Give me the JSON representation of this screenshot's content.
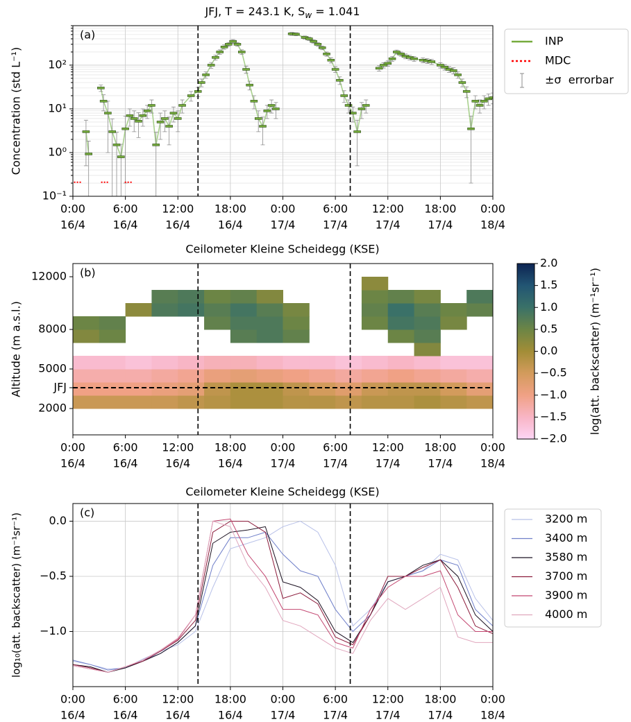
{
  "chart_data": [
    {
      "type": "errorbar",
      "label": "(a)",
      "title": [
        "JFJ, T = 243.1 K, S",
        "w",
        " = 1.041"
      ],
      "ylabel": "Concentration (std L⁻¹)",
      "xlim": [
        0,
        48
      ],
      "xticks": [
        {
          "value": 0,
          "label": [
            "0:00",
            "16/4"
          ]
        },
        {
          "value": 6,
          "label": [
            "6:00",
            "16/4"
          ]
        },
        {
          "value": 12,
          "label": [
            "12:00",
            "16/4"
          ]
        },
        {
          "value": 18,
          "label": [
            "18:00",
            "16/4"
          ]
        },
        {
          "value": 24,
          "label": [
            "0:00",
            "17/4"
          ]
        },
        {
          "value": 30,
          "label": [
            "6:00",
            "17/4"
          ]
        },
        {
          "value": 36,
          "label": [
            "12:00",
            "17/4"
          ]
        },
        {
          "value": 42,
          "label": [
            "18:00",
            "17/4"
          ]
        },
        {
          "value": 48,
          "label": [
            "0:00",
            "18/4"
          ]
        }
      ],
      "ylim": [
        0.1,
        800
      ],
      "yscale": "log",
      "yticks": [
        {
          "value": 0.1,
          "label": "10⁻¹"
        },
        {
          "value": 1,
          "label": "10⁰"
        },
        {
          "value": 10,
          "label": "10¹"
        },
        {
          "value": 100,
          "label": "10²"
        }
      ],
      "minor_yticks": [
        0.2,
        0.3,
        0.4,
        0.5,
        0.6,
        0.7,
        0.8,
        0.9,
        2,
        3,
        4,
        5,
        6,
        7,
        8,
        9,
        20,
        30,
        40,
        50,
        60,
        70,
        80,
        90,
        200,
        300,
        400,
        500,
        600,
        700,
        800
      ],
      "grid": true,
      "vlines": [
        14.3,
        31.7
      ],
      "legend": "outside right",
      "errorbar_label": "±σ  errorbar",
      "errorbar_color": "#8c8c8c",
      "line_color": "#a9d18e",
      "series": [
        {
          "name": "INP",
          "color": "#76ab3c",
          "x": [
            1.5,
            1.8,
            2.5,
            3.2,
            3.5,
            4.0,
            4.5,
            5.0,
            5.5,
            6.0,
            6.5,
            7.0,
            7.5,
            8.0,
            8.5,
            9.0,
            9.5,
            10.0,
            10.5,
            11.0,
            11.5,
            12.0,
            12.5,
            13.5,
            14.3,
            14.7,
            15.2,
            15.8,
            16.3,
            16.8,
            17.3,
            17.8,
            18.3,
            18.8,
            19.3,
            19.8,
            20.2,
            20.7,
            21.2,
            21.7,
            22.2,
            22.7,
            23.2,
            24.1,
            25.0,
            25.5,
            26.5,
            27.0,
            27.5,
            28.0,
            28.5,
            29.0,
            29.5,
            30.0,
            30.5,
            31.0,
            31.5,
            32.0,
            32.5,
            33.0,
            33.5,
            34.2,
            35.0,
            35.5,
            36.0,
            36.5,
            37.0,
            37.5,
            38.0,
            38.5,
            39.0,
            40.0,
            40.5,
            41.0,
            42.0,
            42.5,
            43.0,
            43.5,
            44.0,
            44.5,
            45.0,
            45.5,
            46.0,
            46.5,
            47.0,
            47.5,
            48.0
          ],
          "values": [
            3.0,
            0.93,
            null,
            30,
            15,
            8,
            3,
            1.5,
            0.8,
            3.5,
            7,
            6,
            5.2,
            7,
            9,
            12,
            1.5,
            5,
            6,
            4,
            8,
            6,
            12,
            20,
            25,
            40,
            60,
            100,
            150,
            200,
            260,
            300,
            350,
            300,
            200,
            80,
            35,
            15,
            6,
            4,
            9,
            12,
            10,
            null,
            520,
            510,
            430,
            400,
            350,
            300,
            250,
            180,
            130,
            80,
            45,
            20,
            12,
            8,
            3,
            10,
            12,
            null,
            85,
            100,
            110,
            140,
            200,
            180,
            160,
            150,
            140,
            130,
            125,
            120,
            100,
            90,
            80,
            75,
            60,
            40,
            25,
            3.5,
            15,
            12,
            15,
            17,
            18
          ],
          "errors": [
            2.5,
            0.9,
            null,
            5,
            6,
            7,
            2.9,
            1.4,
            0.75,
            3.3,
            3,
            3,
            3,
            3,
            3,
            4,
            1.4,
            3,
            3,
            2.5,
            3,
            3,
            4,
            5,
            6,
            8,
            10,
            15,
            20,
            25,
            30,
            30,
            35,
            30,
            25,
            15,
            8,
            5,
            3,
            2.5,
            3,
            4,
            4,
            null,
            40,
            40,
            35,
            35,
            30,
            30,
            25,
            20,
            18,
            12,
            9,
            6,
            4,
            3,
            2.5,
            4,
            4,
            null,
            12,
            14,
            15,
            18,
            22,
            20,
            20,
            18,
            18,
            17,
            16,
            16,
            14,
            13,
            12,
            12,
            10,
            8,
            7,
            3.3,
            5,
            4,
            5,
            5,
            5
          ]
        },
        {
          "name": "MDC",
          "color": "#ff0000",
          "x": [
            0.6,
            3.7,
            6.4
          ],
          "values": [
            0.21,
            0.21,
            0.21
          ]
        }
      ]
    },
    {
      "type": "heatmap",
      "label": "(b)",
      "title": "Ceilometer Kleine Scheidegg (KSE)",
      "ylabel": "Altitude (m a.s.l.)",
      "colorbar_label": "log(att. backscatter) (m⁻¹sr⁻¹)",
      "xlim": [
        0,
        48
      ],
      "xticks": [
        {
          "value": 0,
          "label": [
            "0:00",
            "16/4"
          ]
        },
        {
          "value": 6,
          "label": [
            "6:00",
            "16/4"
          ]
        },
        {
          "value": 12,
          "label": [
            "12:00",
            "16/4"
          ]
        },
        {
          "value": 18,
          "label": [
            "18:00",
            "16/4"
          ]
        },
        {
          "value": 24,
          "label": [
            "0:00",
            "17/4"
          ]
        },
        {
          "value": 30,
          "label": [
            "6:00",
            "17/4"
          ]
        },
        {
          "value": 36,
          "label": [
            "12:00",
            "17/4"
          ]
        },
        {
          "value": 42,
          "label": [
            "18:00",
            "17/4"
          ]
        },
        {
          "value": 48,
          "label": [
            "0:00",
            "18/4"
          ]
        }
      ],
      "ylim": [
        0,
        13000
      ],
      "yticks": [
        2000,
        {
          "value": 3580,
          "label": "JFJ"
        },
        5000,
        8000,
        12000
      ],
      "grid": false,
      "vlines": [
        14.3,
        31.7
      ],
      "hlines": [
        3580
      ],
      "clim": [
        -2,
        2
      ],
      "cticks": [
        {
          "value": -2,
          "label": "−2.0"
        },
        {
          "value": -1.5,
          "label": "−1.5"
        },
        {
          "value": -1,
          "label": "−1.0"
        },
        {
          "value": -0.5,
          "label": "−0.5"
        },
        {
          "value": 0,
          "label": "0.0"
        },
        {
          "value": 0.5,
          "label": "0.5"
        },
        {
          "value": 1,
          "label": "1.0"
        },
        {
          "value": 1.5,
          "label": "1.5"
        },
        {
          "value": 2,
          "label": "2.0"
        }
      ],
      "colormap": [
        "#fdd5f5",
        "#f8b5c5",
        "#f0a185",
        "#d39b5c",
        "#a28d37",
        "#6c8545",
        "#3a7168",
        "#225573",
        "#0d2452"
      ],
      "x_edges": [
        0,
        3,
        6,
        9,
        12,
        15,
        18,
        21,
        24,
        27,
        30,
        33,
        36,
        39,
        42,
        45,
        48
      ],
      "y_edges": [
        2000,
        3000,
        4000,
        5000,
        6000,
        7000,
        8000,
        9000,
        10000,
        11000,
        12000,
        13000
      ],
      "z": [
        [
          -0.4,
          -0.4,
          -0.4,
          -0.4,
          -0.3,
          -0.2,
          -0.1,
          -0.1,
          -0.2,
          -0.2,
          -0.3,
          -0.2,
          -0.2,
          -0.1,
          -0.2,
          -0.3
        ],
        [
          -1.0,
          -1.0,
          -1.0,
          -0.9,
          -0.8,
          -0.3,
          -0.1,
          -0.1,
          -0.3,
          -0.5,
          -0.7,
          -0.4,
          -0.3,
          -0.3,
          -0.5,
          -0.8
        ],
        [
          -1.3,
          -1.3,
          -1.3,
          -1.2,
          -1.1,
          -0.9,
          -0.8,
          -0.9,
          -1.0,
          -1.1,
          -1.2,
          -1.1,
          -1.0,
          -1.1,
          -1.2,
          -1.3
        ],
        [
          -1.6,
          -1.6,
          -1.7,
          -1.6,
          -1.5,
          -1.4,
          -1.4,
          -1.5,
          -1.6,
          -1.6,
          -1.7,
          -1.6,
          -1.5,
          -1.6,
          -1.7,
          -1.7
        ],
        [
          null,
          null,
          null,
          null,
          null,
          null,
          null,
          null,
          null,
          null,
          null,
          null,
          null,
          0.3,
          null,
          null
        ],
        [
          0.3,
          0.5,
          null,
          null,
          null,
          null,
          0.7,
          0.8,
          0.6,
          null,
          null,
          null,
          0.5,
          0.7,
          null,
          null
        ],
        [
          0.5,
          0.6,
          null,
          null,
          null,
          0.6,
          0.8,
          0.8,
          0.5,
          null,
          null,
          0.5,
          0.9,
          0.8,
          0.4,
          null
        ],
        [
          null,
          null,
          0.2,
          0.8,
          0.9,
          0.7,
          0.9,
          0.7,
          0.4,
          null,
          null,
          0.6,
          1.0,
          0.7,
          0.5,
          0.6
        ],
        [
          null,
          null,
          null,
          0.7,
          0.8,
          0.5,
          0.6,
          0.3,
          null,
          null,
          null,
          0.5,
          0.6,
          0.4,
          null,
          0.8
        ],
        [
          null,
          null,
          null,
          null,
          null,
          null,
          null,
          null,
          null,
          null,
          null,
          0.2,
          null,
          null,
          null,
          null
        ],
        [
          null,
          null,
          null,
          null,
          null,
          null,
          null,
          null,
          null,
          null,
          null,
          null,
          null,
          null,
          null,
          null
        ]
      ]
    },
    {
      "type": "line",
      "label": "(c)",
      "title": "Ceilometer Kleine Scheidegg (KSE)",
      "ylabel": "log₁₀(att. backscatter) (m⁻¹sr⁻¹)",
      "xlim": [
        0,
        48
      ],
      "xticks": [
        {
          "value": 0,
          "label": [
            "0:00",
            "16/4"
          ]
        },
        {
          "value": 6,
          "label": [
            "6:00",
            "16/4"
          ]
        },
        {
          "value": 12,
          "label": [
            "12:00",
            "16/4"
          ]
        },
        {
          "value": 18,
          "label": [
            "18:00",
            "16/4"
          ]
        },
        {
          "value": 24,
          "label": [
            "0:00",
            "17/4"
          ]
        },
        {
          "value": 30,
          "label": [
            "6:00",
            "17/4"
          ]
        },
        {
          "value": 36,
          "label": [
            "12:00",
            "17/4"
          ]
        },
        {
          "value": 42,
          "label": [
            "18:00",
            "17/4"
          ]
        },
        {
          "value": 48,
          "label": [
            "0:00",
            "18/4"
          ]
        }
      ],
      "ylim": [
        -1.5,
        0.16
      ],
      "yticks": [
        {
          "value": -1,
          "label": "−1.0"
        },
        {
          "value": -0.5,
          "label": "−0.5"
        },
        {
          "value": 0,
          "label": "0.0"
        }
      ],
      "grid": true,
      "vlines": [
        14.3,
        31.7
      ],
      "legend": "outside right",
      "x": [
        0,
        2,
        4,
        6,
        8,
        10,
        12,
        14,
        16,
        18,
        20,
        22,
        24,
        26,
        28,
        30,
        32,
        34,
        36,
        38,
        40,
        42,
        44,
        46,
        48
      ],
      "series": [
        {
          "name": "3200 m",
          "color": "#b7c0e8",
          "values": [
            -1.27,
            -1.3,
            -1.34,
            -1.33,
            -1.25,
            -1.18,
            -1.12,
            -1.0,
            -0.6,
            -0.25,
            -0.2,
            -0.15,
            -0.05,
            0.0,
            -0.1,
            -0.4,
            -0.95,
            -0.8,
            -0.55,
            -0.5,
            -0.45,
            -0.3,
            -0.35,
            -0.7,
            -0.9
          ]
        },
        {
          "name": "3400 m",
          "color": "#6f7fc9",
          "values": [
            -1.26,
            -1.3,
            -1.35,
            -1.33,
            -1.26,
            -1.2,
            -1.1,
            -0.95,
            -0.4,
            -0.15,
            -0.15,
            -0.1,
            -0.3,
            -0.45,
            -0.5,
            -0.8,
            -1.0,
            -0.85,
            -0.55,
            -0.5,
            -0.45,
            -0.35,
            -0.4,
            -0.8,
            -0.95
          ]
        },
        {
          "name": "3580 m",
          "color": "#1a1020",
          "values": [
            -1.3,
            -1.32,
            -1.37,
            -1.33,
            -1.27,
            -1.2,
            -1.1,
            -0.95,
            -0.2,
            -0.1,
            -0.08,
            -0.05,
            -0.55,
            -0.6,
            -0.72,
            -1.0,
            -1.1,
            -0.85,
            -0.55,
            -0.5,
            -0.4,
            -0.35,
            -0.5,
            -0.85,
            -1.0
          ]
        },
        {
          "name": "3700 m",
          "color": "#8b1a3a",
          "values": [
            -1.3,
            -1.33,
            -1.37,
            -1.32,
            -1.27,
            -1.18,
            -1.08,
            -0.9,
            -0.1,
            0.0,
            0.0,
            -0.1,
            -0.7,
            -0.65,
            -0.75,
            -1.05,
            -1.12,
            -0.85,
            -0.5,
            -0.5,
            -0.42,
            -0.35,
            -0.6,
            -0.95,
            -1.02
          ]
        },
        {
          "name": "3900 m",
          "color": "#c2456f",
          "values": [
            -1.31,
            -1.34,
            -1.37,
            -1.32,
            -1.26,
            -1.17,
            -1.07,
            -0.85,
            0.0,
            0.02,
            -0.3,
            -0.5,
            -0.8,
            -0.8,
            -0.85,
            -1.1,
            -1.15,
            -0.8,
            -0.6,
            -0.5,
            -0.5,
            -0.45,
            -0.85,
            -1.0,
            -1.0
          ]
        },
        {
          "name": "4000 m",
          "color": "#e0a6bd",
          "values": [
            -1.31,
            -1.34,
            -1.37,
            -1.32,
            -1.26,
            -1.17,
            -1.06,
            -0.85,
            0.0,
            -0.05,
            -0.4,
            -0.6,
            -0.9,
            -0.95,
            -1.05,
            -1.15,
            -1.2,
            -0.9,
            -0.7,
            -0.8,
            -0.7,
            -0.6,
            -1.05,
            -1.1,
            -1.1
          ]
        }
      ]
    }
  ]
}
